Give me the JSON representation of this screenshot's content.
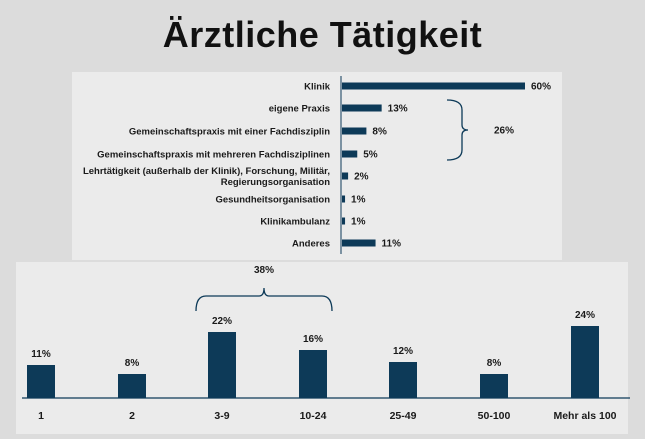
{
  "title": "Ärztliche Tätigkeit",
  "colors": {
    "bar": "#0d3a58",
    "brace": "#0d3a58",
    "axis": "#0d3a58"
  },
  "chart_data": [
    {
      "type": "bar",
      "orientation": "horizontal",
      "categories": [
        "Klinik",
        "eigene Praxis",
        "Gemeinschaftspraxis mit einer Fachdisziplin",
        "Gemeinschaftspraxis mit mehreren Fachdisziplinen",
        "Lehrtätigkeit (außerhalb der Klinik), Forschung, Militär,|Regierungsorganisation",
        "Gesundheitsorganisation",
        "Klinikambulanz",
        "Anderes"
      ],
      "values": [
        60,
        13,
        8,
        5,
        2,
        1,
        1,
        11
      ],
      "value_labels": [
        "60%",
        "13%",
        "8%",
        "5%",
        "2%",
        "1%",
        "1%",
        "11%"
      ],
      "xlim": [
        0,
        60
      ],
      "annotation": {
        "label": "26%",
        "spans_categories": [
          1,
          3
        ]
      }
    },
    {
      "type": "bar",
      "orientation": "vertical",
      "categories": [
        "1",
        "2",
        "3-9",
        "10-24",
        "25-49",
        "50-100",
        "Mehr als 100"
      ],
      "values": [
        11,
        8,
        22,
        16,
        12,
        8,
        24
      ],
      "value_labels": [
        "11%",
        "8%",
        "22%",
        "16%",
        "12%",
        "8%",
        "24%"
      ],
      "ylim": [
        0,
        24
      ],
      "annotation": {
        "label": "38%",
        "spans_categories": [
          2,
          3
        ]
      }
    }
  ]
}
